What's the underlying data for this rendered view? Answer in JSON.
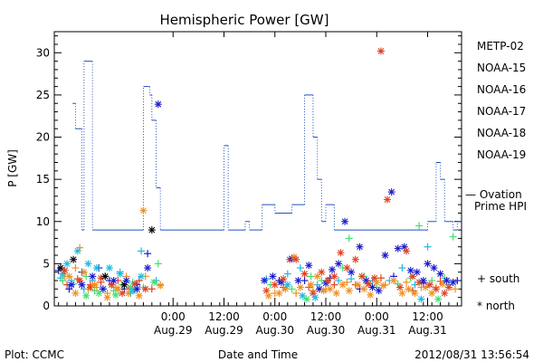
{
  "chart_data": {
    "type": "scatter",
    "title": "Hemispheric Power [GW]",
    "ylabel": "P [GW]",
    "xlabel": "Date and Time",
    "ylim": [
      0,
      32.5
    ],
    "y_ticks": [
      "0",
      "5",
      "10",
      "15",
      "20",
      "25",
      "30"
    ],
    "x_ticks": [
      {
        "time": "0:00",
        "date": "Aug.29"
      },
      {
        "time": "12:00",
        "date": "Aug.29"
      },
      {
        "time": "0:00",
        "date": "Aug.30"
      },
      {
        "time": "12:00",
        "date": "Aug.30"
      },
      {
        "time": "0:00",
        "date": "Aug.31"
      },
      {
        "time": "12:00",
        "date": "Aug.31"
      }
    ],
    "series": [
      {
        "name": "METP-02",
        "color": "#000000"
      },
      {
        "name": "NOAA-15",
        "color": "#1a1acd"
      },
      {
        "name": "NOAA-16",
        "color": "#20b8e0"
      },
      {
        "name": "NOAA-17",
        "color": "#40e070"
      },
      {
        "name": "NOAA-18",
        "color": "#f09020"
      },
      {
        "name": "NOAA-19",
        "color": "#e04020"
      }
    ],
    "ovation": {
      "name": "— Ovation Prime HPI",
      "color": "#2050c0",
      "points": [
        [
          -23.7,
          24
        ],
        [
          -23,
          24
        ],
        [
          -23,
          21
        ],
        [
          -21.5,
          21
        ],
        [
          -21.5,
          9
        ],
        [
          -21,
          9
        ],
        [
          -21,
          29
        ],
        [
          -19,
          29
        ],
        [
          -19,
          9
        ],
        [
          -18,
          9
        ],
        [
          -18,
          9
        ],
        [
          -7,
          9
        ],
        [
          -7,
          26
        ],
        [
          -5.5,
          26
        ],
        [
          -5.5,
          25
        ],
        [
          -5,
          25
        ],
        [
          -5,
          22
        ],
        [
          -4,
          22
        ],
        [
          -4,
          14
        ],
        [
          -3,
          14
        ],
        [
          -3,
          9
        ],
        [
          12,
          9
        ],
        [
          12,
          19
        ],
        [
          13,
          19
        ],
        [
          13,
          9
        ],
        [
          17,
          9
        ],
        [
          17,
          10
        ],
        [
          18,
          10
        ],
        [
          18,
          9
        ],
        [
          21,
          9
        ],
        [
          21,
          12
        ],
        [
          24,
          12
        ],
        [
          24,
          11
        ],
        [
          28,
          11
        ],
        [
          28,
          12
        ],
        [
          31,
          12
        ],
        [
          31,
          25
        ],
        [
          33,
          25
        ],
        [
          33,
          20
        ],
        [
          34,
          20
        ],
        [
          34,
          15
        ],
        [
          35,
          15
        ],
        [
          35,
          10
        ],
        [
          36,
          10
        ],
        [
          36,
          12
        ],
        [
          38,
          12
        ],
        [
          38,
          9
        ],
        [
          60,
          9
        ],
        [
          60,
          10
        ],
        [
          62,
          10
        ],
        [
          62,
          17
        ],
        [
          63,
          17
        ],
        [
          63,
          15
        ],
        [
          64,
          15
        ],
        [
          64,
          10
        ],
        [
          66,
          10
        ],
        [
          66,
          9
        ],
        [
          67,
          9
        ],
        [
          67,
          10
        ],
        [
          68,
          10
        ]
      ]
    },
    "south": [
      {
        "s": 1,
        "x": -27,
        "y": 4.2
      },
      {
        "s": 2,
        "x": -26.5,
        "y": 3.3
      },
      {
        "s": 3,
        "x": -26,
        "y": 3
      },
      {
        "s": 4,
        "x": -25.5,
        "y": 3.5
      },
      {
        "s": 5,
        "x": -25,
        "y": 2.5
      },
      {
        "s": 1,
        "x": -24.5,
        "y": 2
      },
      {
        "s": 2,
        "x": -24,
        "y": 3
      },
      {
        "s": 3,
        "x": -23.5,
        "y": 2.6
      },
      {
        "s": 4,
        "x": -23,
        "y": 4.5
      },
      {
        "s": 5,
        "x": -22.5,
        "y": 3.2
      },
      {
        "s": 4,
        "x": -22,
        "y": 6.9
      },
      {
        "s": 1,
        "x": -21.5,
        "y": 4
      },
      {
        "s": 2,
        "x": -21,
        "y": 2
      },
      {
        "s": 3,
        "x": -20.5,
        "y": 3.5
      },
      {
        "s": 4,
        "x": -20,
        "y": 2
      },
      {
        "s": 5,
        "x": -19.5,
        "y": 2.5
      },
      {
        "s": 2,
        "x": -19,
        "y": 3
      },
      {
        "s": 3,
        "x": -18.5,
        "y": 1.8
      },
      {
        "s": 4,
        "x": -18,
        "y": 2.2
      },
      {
        "s": 1,
        "x": -17.5,
        "y": 4.5
      },
      {
        "s": 5,
        "x": -17,
        "y": 2.8
      },
      {
        "s": 2,
        "x": -16.5,
        "y": 2
      },
      {
        "s": 3,
        "x": -16,
        "y": 3.5
      },
      {
        "s": 4,
        "x": -15.5,
        "y": 1.5
      },
      {
        "s": 1,
        "x": -15,
        "y": 3
      },
      {
        "s": 2,
        "x": -14.5,
        "y": 2.5
      },
      {
        "s": 3,
        "x": -14,
        "y": 1.8
      },
      {
        "s": 4,
        "x": -13.5,
        "y": 2.2
      },
      {
        "s": 5,
        "x": -13,
        "y": 3
      },
      {
        "s": 2,
        "x": -12.5,
        "y": 4
      },
      {
        "s": 3,
        "x": -12,
        "y": 2.5
      },
      {
        "s": 1,
        "x": -11.5,
        "y": 2
      },
      {
        "s": 4,
        "x": -11,
        "y": 3.5
      },
      {
        "s": 5,
        "x": -10.5,
        "y": 2
      },
      {
        "s": 2,
        "x": -10,
        "y": 1.5
      },
      {
        "s": 3,
        "x": -9.5,
        "y": 2.8
      },
      {
        "s": 4,
        "x": -9,
        "y": 2
      },
      {
        "s": 1,
        "x": -8.5,
        "y": 2.5
      },
      {
        "s": 5,
        "x": -8,
        "y": 3
      },
      {
        "s": 2,
        "x": -7.5,
        "y": 6.5
      },
      {
        "s": 3,
        "x": -7,
        "y": 2.2
      },
      {
        "s": 4,
        "x": -6.5,
        "y": 3.5
      },
      {
        "s": 1,
        "x": -6,
        "y": 6.2
      },
      {
        "s": 5,
        "x": -5,
        "y": 2
      },
      {
        "s": 2,
        "x": -4,
        "y": 3
      },
      {
        "s": 3,
        "x": -3.5,
        "y": 5
      },
      {
        "s": 4,
        "x": -3,
        "y": 2.5
      },
      {
        "s": 2,
        "x": 22,
        "y": 3.2
      },
      {
        "s": 3,
        "x": 23,
        "y": 2.5
      },
      {
        "s": 4,
        "x": 24,
        "y": 1.5
      },
      {
        "s": 1,
        "x": 25,
        "y": 3
      },
      {
        "s": 5,
        "x": 26,
        "y": 2.2
      },
      {
        "s": 2,
        "x": 27,
        "y": 3.8
      },
      {
        "s": 3,
        "x": 28,
        "y": 2
      },
      {
        "s": 4,
        "x": 29,
        "y": 1.5
      },
      {
        "s": 2,
        "x": 30,
        "y": 4.5
      },
      {
        "s": 1,
        "x": 31,
        "y": 3
      },
      {
        "s": 5,
        "x": 32,
        "y": 2.2
      },
      {
        "s": 3,
        "x": 32.5,
        "y": 3.5
      },
      {
        "s": 4,
        "x": 33,
        "y": 1.8
      },
      {
        "s": 2,
        "x": 34,
        "y": 2.5
      },
      {
        "s": 3,
        "x": 35,
        "y": 3
      },
      {
        "s": 4,
        "x": 36,
        "y": 2
      },
      {
        "s": 1,
        "x": 37,
        "y": 3.3
      },
      {
        "s": 5,
        "x": 38,
        "y": 2.5
      },
      {
        "s": 2,
        "x": 39,
        "y": 3
      },
      {
        "s": 3,
        "x": 40,
        "y": 4.5
      },
      {
        "s": 4,
        "x": 41,
        "y": 2.8
      },
      {
        "s": 3,
        "x": 41.5,
        "y": 8
      },
      {
        "s": 2,
        "x": 42,
        "y": 3.2
      },
      {
        "s": 5,
        "x": 43,
        "y": 2.5
      },
      {
        "s": 1,
        "x": 44,
        "y": 2
      },
      {
        "s": 3,
        "x": 45,
        "y": 3.5
      },
      {
        "s": 4,
        "x": 46,
        "y": 2.7
      },
      {
        "s": 2,
        "x": 47,
        "y": 3
      },
      {
        "s": 3,
        "x": 48,
        "y": 2.2
      },
      {
        "s": 5,
        "x": 49,
        "y": 3.3
      },
      {
        "s": 4,
        "x": 50,
        "y": 2.5
      },
      {
        "s": 2,
        "x": 51,
        "y": 3
      },
      {
        "s": 1,
        "x": 52,
        "y": 3.5
      },
      {
        "s": 3,
        "x": 53,
        "y": 2.6
      },
      {
        "s": 2,
        "x": 54,
        "y": 4.5
      },
      {
        "s": 4,
        "x": 55,
        "y": 2.8
      },
      {
        "s": 3,
        "x": 56,
        "y": 3.3
      },
      {
        "s": 5,
        "x": 56.5,
        "y": 1.8
      },
      {
        "s": 2,
        "x": 57,
        "y": 2.5
      },
      {
        "s": 3,
        "x": 58,
        "y": 9.5
      },
      {
        "s": 4,
        "x": 58.5,
        "y": 2.2
      },
      {
        "s": 1,
        "x": 59,
        "y": 2.7
      },
      {
        "s": 2,
        "x": 60,
        "y": 7
      },
      {
        "s": 3,
        "x": 61,
        "y": 3
      },
      {
        "s": 4,
        "x": 62,
        "y": 2.2
      },
      {
        "s": 5,
        "x": 63,
        "y": 2.9
      },
      {
        "s": 3,
        "x": 64,
        "y": 3.3
      },
      {
        "s": 2,
        "x": 65,
        "y": 2.5
      },
      {
        "s": 3,
        "x": 66,
        "y": 8.2
      },
      {
        "s": 4,
        "x": 66.5,
        "y": 2
      },
      {
        "s": 1,
        "x": 67,
        "y": 3
      }
    ],
    "north": [
      {
        "s": 0,
        "x": -26.5,
        "y": 4.5
      },
      {
        "s": 2,
        "x": -26,
        "y": 3.8
      },
      {
        "s": 5,
        "x": -25.5,
        "y": 4.2
      },
      {
        "s": 2,
        "x": -25,
        "y": 5
      },
      {
        "s": 4,
        "x": -24.5,
        "y": 3.5
      },
      {
        "s": 1,
        "x": -24,
        "y": 2.5
      },
      {
        "s": 0,
        "x": -23.5,
        "y": 5.5
      },
      {
        "s": 4,
        "x": -23,
        "y": 1.5
      },
      {
        "s": 2,
        "x": -22.5,
        "y": 6.5
      },
      {
        "s": 5,
        "x": -22,
        "y": 3
      },
      {
        "s": 1,
        "x": -21.5,
        "y": 2.5
      },
      {
        "s": 4,
        "x": -21,
        "y": 4
      },
      {
        "s": 3,
        "x": -20.5,
        "y": 1.2
      },
      {
        "s": 2,
        "x": -20,
        "y": 5
      },
      {
        "s": 5,
        "x": -19.5,
        "y": 2.2
      },
      {
        "s": 1,
        "x": -19,
        "y": 3.5
      },
      {
        "s": 4,
        "x": -18.5,
        "y": 2.5
      },
      {
        "s": 2,
        "x": -18,
        "y": 4.5
      },
      {
        "s": 3,
        "x": -17.5,
        "y": 1.5
      },
      {
        "s": 5,
        "x": -17,
        "y": 3.3
      },
      {
        "s": 1,
        "x": -16.5,
        "y": 2
      },
      {
        "s": 0,
        "x": -16,
        "y": 3.5
      },
      {
        "s": 4,
        "x": -15.5,
        "y": 1
      },
      {
        "s": 2,
        "x": -15,
        "y": 4.5
      },
      {
        "s": 5,
        "x": -14.5,
        "y": 2.5
      },
      {
        "s": 1,
        "x": -14,
        "y": 3
      },
      {
        "s": 3,
        "x": -13.5,
        "y": 1.3
      },
      {
        "s": 4,
        "x": -13,
        "y": 2
      },
      {
        "s": 2,
        "x": -12.5,
        "y": 3.8
      },
      {
        "s": 5,
        "x": -12,
        "y": 1.5
      },
      {
        "s": 0,
        "x": -11.5,
        "y": 2.5
      },
      {
        "s": 1,
        "x": -11,
        "y": 3
      },
      {
        "s": 4,
        "x": -10.5,
        "y": 1.5
      },
      {
        "s": 3,
        "x": -10,
        "y": 2.2
      },
      {
        "s": 2,
        "x": -9.5,
        "y": 1.8
      },
      {
        "s": 5,
        "x": -9,
        "y": 2.6
      },
      {
        "s": 1,
        "x": -8.5,
        "y": 2
      },
      {
        "s": 4,
        "x": -8,
        "y": 1.2
      },
      {
        "s": 2,
        "x": -7.5,
        "y": 3.5
      },
      {
        "s": 4,
        "x": -7,
        "y": 11.3
      },
      {
        "s": 5,
        "x": -6.5,
        "y": 2
      },
      {
        "s": 1,
        "x": -6,
        "y": 4.5
      },
      {
        "s": 0,
        "x": -5,
        "y": 9
      },
      {
        "s": 3,
        "x": -4.5,
        "y": 2.8
      },
      {
        "s": 1,
        "x": -3.5,
        "y": 23.9
      },
      {
        "s": 4,
        "x": -3,
        "y": 2.4
      },
      {
        "s": 1,
        "x": 21.5,
        "y": 3
      },
      {
        "s": 5,
        "x": 22,
        "y": 1.8
      },
      {
        "s": 4,
        "x": 22.5,
        "y": 1.2
      },
      {
        "s": 1,
        "x": 23.5,
        "y": 3.5
      },
      {
        "s": 5,
        "x": 24,
        "y": 2.5
      },
      {
        "s": 4,
        "x": 25,
        "y": 1.5
      },
      {
        "s": 1,
        "x": 25.5,
        "y": 2.8
      },
      {
        "s": 5,
        "x": 26,
        "y": 3.2
      },
      {
        "s": 4,
        "x": 26.5,
        "y": 2
      },
      {
        "s": 2,
        "x": 27,
        "y": 2.5
      },
      {
        "s": 5,
        "x": 27.5,
        "y": 5.5
      },
      {
        "s": 1,
        "x": 28,
        "y": 5.6
      },
      {
        "s": 4,
        "x": 28.5,
        "y": 5.8
      },
      {
        "s": 5,
        "x": 29,
        "y": 5.5
      },
      {
        "s": 1,
        "x": 29.5,
        "y": 3
      },
      {
        "s": 4,
        "x": 30,
        "y": 2.2
      },
      {
        "s": 2,
        "x": 30.5,
        "y": 1.2
      },
      {
        "s": 5,
        "x": 31,
        "y": 3.8
      },
      {
        "s": 3,
        "x": 31.5,
        "y": 0.8
      },
      {
        "s": 1,
        "x": 32,
        "y": 4.8
      },
      {
        "s": 4,
        "x": 32.5,
        "y": 2.5
      },
      {
        "s": 5,
        "x": 33,
        "y": 1.5
      },
      {
        "s": 2,
        "x": 33.5,
        "y": 1
      },
      {
        "s": 4,
        "x": 34,
        "y": 3.5
      },
      {
        "s": 1,
        "x": 34.5,
        "y": 2
      },
      {
        "s": 5,
        "x": 35,
        "y": 4
      },
      {
        "s": 4,
        "x": 35.5,
        "y": 1.8
      },
      {
        "s": 1,
        "x": 36,
        "y": 2.7
      },
      {
        "s": 5,
        "x": 36.5,
        "y": 3
      },
      {
        "s": 4,
        "x": 37,
        "y": 2
      },
      {
        "s": 1,
        "x": 37.5,
        "y": 4.3
      },
      {
        "s": 5,
        "x": 38,
        "y": 3.5
      },
      {
        "s": 4,
        "x": 38.5,
        "y": 1.5
      },
      {
        "s": 1,
        "x": 39,
        "y": 5
      },
      {
        "s": 5,
        "x": 39.5,
        "y": 6.3
      },
      {
        "s": 4,
        "x": 40,
        "y": 2.5
      },
      {
        "s": 1,
        "x": 40.5,
        "y": 10
      },
      {
        "s": 5,
        "x": 41,
        "y": 4.5
      },
      {
        "s": 4,
        "x": 41.5,
        "y": 1.8
      },
      {
        "s": 1,
        "x": 42,
        "y": 4
      },
      {
        "s": 5,
        "x": 43,
        "y": 5.5
      },
      {
        "s": 4,
        "x": 43.5,
        "y": 2.5
      },
      {
        "s": 1,
        "x": 44,
        "y": 7
      },
      {
        "s": 5,
        "x": 44.5,
        "y": 3.5
      },
      {
        "s": 4,
        "x": 45,
        "y": 2
      },
      {
        "s": 1,
        "x": 45.5,
        "y": 3
      },
      {
        "s": 5,
        "x": 46,
        "y": 2.6
      },
      {
        "s": 4,
        "x": 46.5,
        "y": 1.3
      },
      {
        "s": 1,
        "x": 47,
        "y": 2.2
      },
      {
        "s": 5,
        "x": 47.5,
        "y": 3.3
      },
      {
        "s": 4,
        "x": 48,
        "y": 2.8
      },
      {
        "s": 1,
        "x": 48.5,
        "y": 1.8
      },
      {
        "s": 5,
        "x": 49,
        "y": 30.2
      },
      {
        "s": 4,
        "x": 49.5,
        "y": 2.4
      },
      {
        "s": 1,
        "x": 50,
        "y": 6
      },
      {
        "s": 5,
        "x": 50.5,
        "y": 12.6
      },
      {
        "s": 1,
        "x": 51.5,
        "y": 13.5
      },
      {
        "s": 4,
        "x": 52,
        "y": 3
      },
      {
        "s": 1,
        "x": 53,
        "y": 6.8
      },
      {
        "s": 5,
        "x": 53.5,
        "y": 2.2
      },
      {
        "s": 4,
        "x": 54,
        "y": 1.5
      },
      {
        "s": 1,
        "x": 54.5,
        "y": 7
      },
      {
        "s": 5,
        "x": 55,
        "y": 6.5
      },
      {
        "s": 4,
        "x": 55.5,
        "y": 2
      },
      {
        "s": 1,
        "x": 56,
        "y": 4.2
      },
      {
        "s": 5,
        "x": 56.5,
        "y": 3.5
      },
      {
        "s": 4,
        "x": 57,
        "y": 1.5
      },
      {
        "s": 1,
        "x": 57.5,
        "y": 4
      },
      {
        "s": 5,
        "x": 58,
        "y": 2.8
      },
      {
        "s": 2,
        "x": 58.5,
        "y": 0.8
      },
      {
        "s": 1,
        "x": 59,
        "y": 3
      },
      {
        "s": 4,
        "x": 59.5,
        "y": 2.2
      },
      {
        "s": 1,
        "x": 60,
        "y": 5
      },
      {
        "s": 5,
        "x": 60.5,
        "y": 2.5
      },
      {
        "s": 4,
        "x": 61,
        "y": 1.5
      },
      {
        "s": 1,
        "x": 61.5,
        "y": 4.5
      },
      {
        "s": 5,
        "x": 62,
        "y": 2
      },
      {
        "s": 3,
        "x": 62.5,
        "y": 0.8
      },
      {
        "s": 1,
        "x": 63,
        "y": 3.8
      },
      {
        "s": 4,
        "x": 63.5,
        "y": 2.6
      },
      {
        "s": 5,
        "x": 64,
        "y": 1.5
      },
      {
        "s": 1,
        "x": 64.5,
        "y": 3
      },
      {
        "s": 5,
        "x": 65,
        "y": 2.2
      },
      {
        "s": 1,
        "x": 66,
        "y": 2.8
      }
    ],
    "markers_legend": {
      "south": "+ south",
      "north": "* north"
    }
  },
  "footer": {
    "plot_credit": "Plot: CCMC",
    "timestamp": "2012/08/31  13:56:54"
  }
}
